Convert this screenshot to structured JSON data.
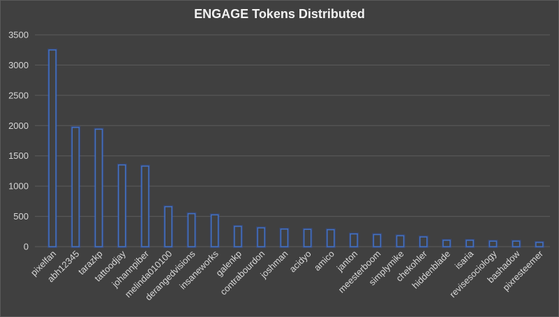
{
  "chart_data": {
    "type": "bar",
    "title": "ENGAGE Tokens Distributed",
    "xlabel": "",
    "ylabel": "",
    "ylim": [
      0,
      3500
    ],
    "yticks": [
      0,
      500,
      1000,
      1500,
      2000,
      2500,
      3000,
      3500
    ],
    "grid": true,
    "legend": "none",
    "colors": {
      "background": "#404040",
      "bar_outline": "#4472c4",
      "text": "#d9d9d9",
      "grid": "#5c5c5c"
    },
    "categories": [
      "pixelfan",
      "abh12345",
      "tarazkp",
      "tattoodjay",
      "johannpiber",
      "melinda010100",
      "derangedvisions",
      "insaneworks",
      "galenkp",
      "contrabourdon",
      "joshman",
      "acidyo",
      "amico",
      "janton",
      "meesterboom",
      "simplymike",
      "chekohler",
      "hiddenblade",
      "isaria",
      "revisesociology",
      "bashadow",
      "pixresteemer"
    ],
    "values": [
      3250,
      1970,
      1940,
      1350,
      1330,
      660,
      545,
      525,
      335,
      310,
      290,
      285,
      280,
      210,
      200,
      180,
      160,
      105,
      105,
      90,
      90,
      70
    ]
  }
}
